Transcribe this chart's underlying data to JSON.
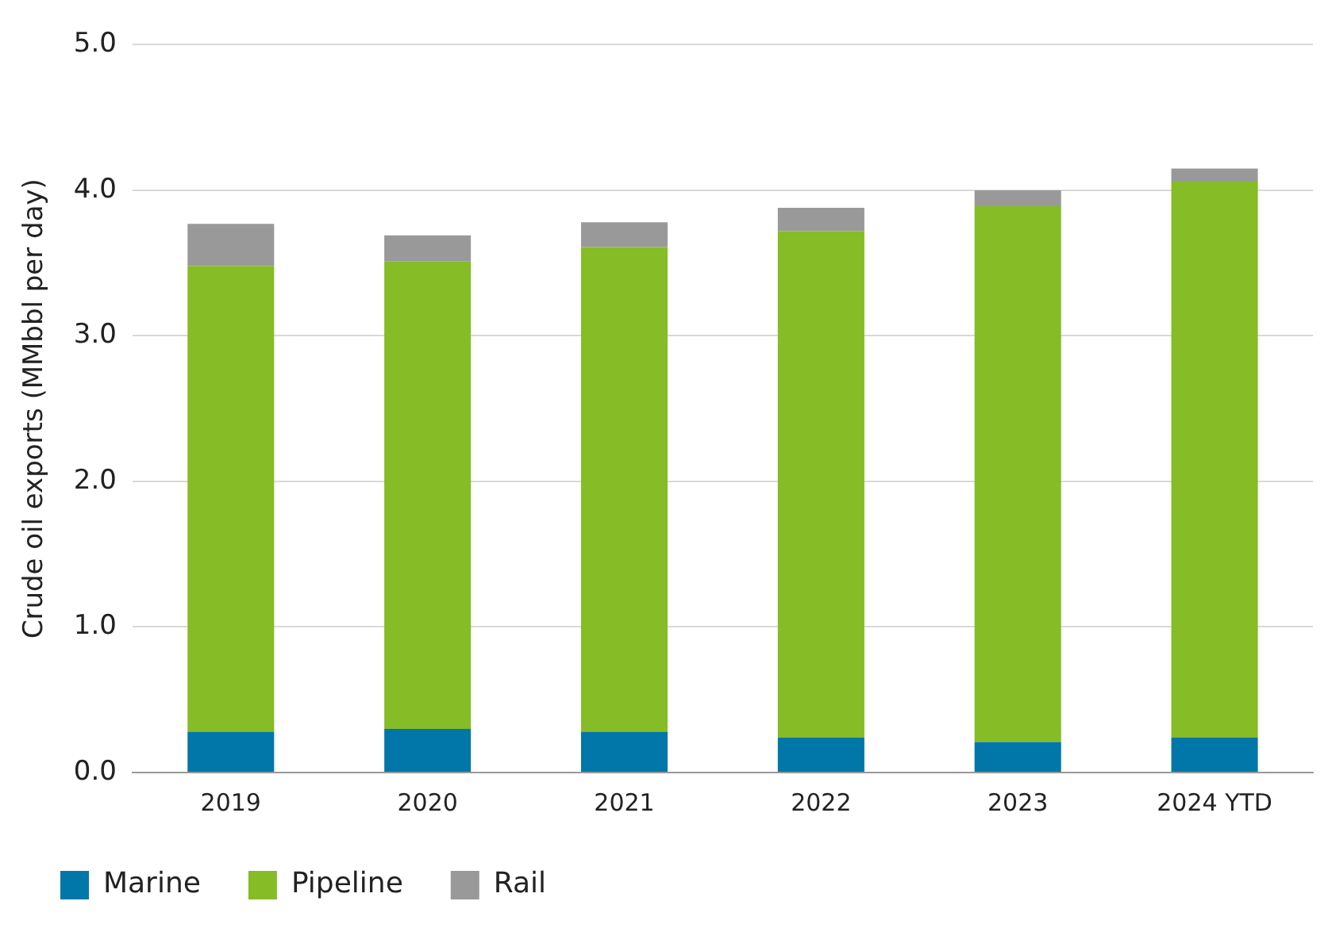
{
  "chart_data": {
    "type": "bar",
    "ylabel": "Crude oil exports (MMbbl per day)",
    "categories": [
      "2019",
      "2020",
      "2021",
      "2022",
      "2023",
      "2024 YTD"
    ],
    "stacked": true,
    "series": [
      {
        "name": "Marine",
        "color": "#0077a8",
        "values": [
          0.28,
          0.3,
          0.28,
          0.24,
          0.21,
          0.24
        ]
      },
      {
        "name": "Pipeline",
        "color": "#86bc25",
        "values": [
          3.2,
          3.21,
          3.33,
          3.48,
          3.68,
          3.82
        ]
      },
      {
        "name": "Rail",
        "color": "#999999",
        "values": [
          0.29,
          0.18,
          0.17,
          0.16,
          0.11,
          0.09
        ]
      }
    ],
    "ylim": [
      0,
      5
    ],
    "yticks": [
      {
        "value": 0,
        "label": "0.0"
      },
      {
        "value": 1,
        "label": "1.0"
      },
      {
        "value": 2,
        "label": "2.0"
      },
      {
        "value": 3,
        "label": "3.0"
      },
      {
        "value": 4,
        "label": "4.0"
      },
      {
        "value": 5,
        "label": "5.0"
      }
    ],
    "grid": "y",
    "legend": "bottom left"
  }
}
